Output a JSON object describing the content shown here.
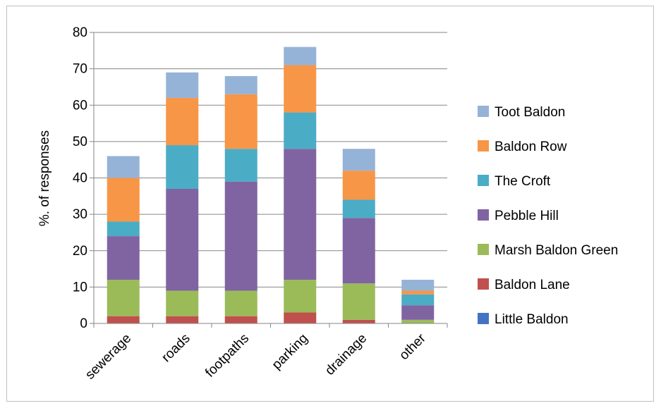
{
  "chart_data": {
    "type": "bar",
    "stacked": true,
    "title": "",
    "xlabel": "",
    "ylabel": "%. of responses",
    "ylim": [
      0,
      80
    ],
    "yticks": [
      0,
      10,
      20,
      30,
      40,
      50,
      60,
      70,
      80
    ],
    "grid": true,
    "legend_position": "right",
    "categories": [
      "sewerage",
      "roads",
      "footpaths",
      "parking",
      "drainage",
      "other"
    ],
    "series": [
      {
        "name": "Little Baldon",
        "color": "#4472c4",
        "values": [
          0,
          0,
          0,
          0,
          0,
          0
        ]
      },
      {
        "name": "Baldon Lane",
        "color": "#c0504d",
        "values": [
          2,
          2,
          2,
          3,
          1,
          0
        ]
      },
      {
        "name": "Marsh Baldon Green",
        "color": "#9bbb59",
        "values": [
          10,
          7,
          7,
          9,
          10,
          1
        ]
      },
      {
        "name": "Pebble Hill",
        "color": "#8064a2",
        "values": [
          12,
          28,
          30,
          36,
          18,
          4
        ]
      },
      {
        "name": "The Croft",
        "color": "#4bacc6",
        "values": [
          4,
          12,
          9,
          10,
          5,
          3
        ]
      },
      {
        "name": "Baldon Row",
        "color": "#f79646",
        "values": [
          12,
          13,
          15,
          13,
          8,
          1
        ]
      },
      {
        "name": "Toot Baldon",
        "color": "#95b3d7",
        "values": [
          6,
          7,
          5,
          5,
          6,
          3
        ]
      }
    ]
  }
}
